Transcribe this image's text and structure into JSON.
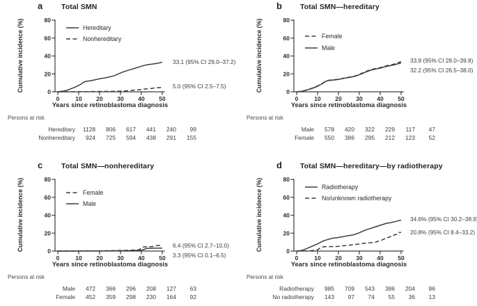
{
  "ink_color": "#3b3b3b",
  "background_color": "#ffffff",
  "chart_data": [
    {
      "type": "line",
      "panel": "a",
      "title": "Total SMN",
      "xlabel": "Years since retinoblastoma diagnosis",
      "ylabel": "Cumulative incidence (%)",
      "xlim": [
        0,
        50
      ],
      "ylim": [
        0,
        80
      ],
      "xticks": [
        0,
        10,
        20,
        30,
        40,
        50
      ],
      "yticks": [
        0,
        20,
        40,
        60,
        80
      ],
      "grid": false,
      "legend_position": "top-left-inside",
      "series": [
        {
          "name": "Hereditary",
          "style": "solid",
          "annotation": "33.1 (95% CI 29.0–37.2)",
          "x": [
            0,
            1,
            3,
            5,
            7,
            9,
            11,
            12,
            13,
            14,
            16,
            18,
            20,
            22,
            24,
            26,
            27,
            29,
            31,
            33,
            35,
            37,
            39,
            41,
            43,
            45,
            47,
            49,
            50
          ],
          "y": [
            0,
            0.3,
            1,
            2.2,
            4,
            6,
            8.5,
            10,
            11.5,
            11.8,
            12.5,
            13.5,
            14.5,
            15.3,
            16.2,
            17.3,
            18,
            20,
            22,
            23.5,
            25,
            26.3,
            27.8,
            29.3,
            30.3,
            30.8,
            31.5,
            32.5,
            33.1
          ]
        },
        {
          "name": "Nonhereditary",
          "style": "dashed",
          "annotation": "5.0 (95% CI 2.5–7.5)",
          "x": [
            0,
            15,
            25,
            30,
            32,
            34,
            36,
            38,
            40,
            41,
            43,
            45,
            46,
            48,
            50
          ],
          "y": [
            0,
            0.2,
            0.5,
            0.8,
            1,
            1.3,
            1.8,
            2.2,
            2.5,
            3,
            3.3,
            3.8,
            4.2,
            4.6,
            5.0
          ]
        }
      ],
      "persons_at_risk": {
        "label": "Persons at risk",
        "x": [
          0,
          10,
          20,
          30,
          40,
          50
        ],
        "rows": [
          {
            "name": "Hereditary",
            "values": [
              1128,
              806,
              617,
              441,
              240,
              99
            ]
          },
          {
            "name": "Nonhereditary",
            "values": [
              924,
              725,
              594,
              438,
              291,
              155
            ]
          }
        ]
      }
    },
    {
      "type": "line",
      "panel": "b",
      "title": "Total SMN—hereditary",
      "xlabel": "Years since retinoblastoma diagnosis",
      "ylabel": "Cumulative incidence (%)",
      "xlim": [
        0,
        50
      ],
      "ylim": [
        0,
        80
      ],
      "xticks": [
        0,
        10,
        20,
        30,
        40,
        50
      ],
      "yticks": [
        0,
        20,
        40,
        60,
        80
      ],
      "grid": false,
      "legend_position": "top-left-inside",
      "series": [
        {
          "name": "Female",
          "style": "dashed",
          "annotation": "33.9 (95% CI 28.0–39.8)",
          "x": [
            0,
            2,
            4,
            6,
            8,
            10,
            12,
            13,
            14,
            15,
            17,
            19,
            21,
            23,
            25,
            27,
            29,
            31,
            33,
            34,
            36,
            38,
            40,
            42,
            44,
            46,
            48,
            50
          ],
          "y": [
            0,
            0.5,
            1.5,
            3,
            4.5,
            6.5,
            9,
            10.5,
            12,
            12.8,
            13.3,
            13.8,
            14.5,
            15.5,
            16.3,
            17,
            18.5,
            20.5,
            22.5,
            23.5,
            25,
            26,
            27,
            28.5,
            29.5,
            30.5,
            32,
            33.9
          ]
        },
        {
          "name": "Male",
          "style": "solid",
          "annotation": "32.2 (95% CI 26.5–38.0)",
          "x": [
            0,
            2,
            4,
            6,
            8,
            10,
            12,
            13,
            14,
            15,
            17,
            19,
            21,
            23,
            25,
            27,
            29,
            31,
            33,
            34,
            36,
            38,
            40,
            42,
            44,
            46,
            48,
            50
          ],
          "y": [
            0,
            0.4,
            1.3,
            2.8,
            4.3,
            6.2,
            8.7,
            10.2,
            11.7,
            12.5,
            13,
            13.5,
            14.2,
            15.2,
            16,
            16.8,
            18.2,
            20,
            22,
            23,
            24.5,
            25.5,
            26.5,
            27.8,
            28.8,
            29.8,
            31,
            32.2
          ]
        }
      ],
      "persons_at_risk": {
        "label": "Persons at risk",
        "x": [
          0,
          10,
          20,
          30,
          40,
          50
        ],
        "rows": [
          {
            "name": "Male",
            "values": [
              578,
              420,
              322,
              229,
              117,
              47
            ]
          },
          {
            "name": "Female",
            "values": [
              550,
              386,
              295,
              212,
              123,
              52
            ]
          }
        ]
      }
    },
    {
      "type": "line",
      "panel": "c",
      "title": "Total SMN—nonhereditary",
      "xlabel": "Years since retinoblastoma diagnosis",
      "ylabel": "Cumulative incidence (%)",
      "xlim": [
        0,
        50
      ],
      "ylim": [
        0,
        80
      ],
      "xticks": [
        0,
        10,
        20,
        30,
        40,
        50
      ],
      "yticks": [
        0,
        20,
        40,
        60,
        80
      ],
      "grid": false,
      "legend_position": "top-left-inside",
      "series": [
        {
          "name": "Female",
          "style": "dashed",
          "annotation": "6.4 (95% CI 2.7–10.0)",
          "x": [
            0,
            20,
            27,
            33,
            37,
            39,
            40,
            41,
            44,
            46,
            47,
            48,
            50
          ],
          "y": [
            0,
            0.2,
            0.5,
            0.8,
            1.2,
            1.5,
            3.8,
            4.6,
            4.8,
            5.2,
            5.8,
            6.2,
            6.4
          ]
        },
        {
          "name": "Male",
          "style": "solid",
          "annotation": "3.3 (95% CI 0.1–6.5)",
          "x": [
            0,
            25,
            35,
            39,
            41,
            42,
            43,
            46,
            50
          ],
          "y": [
            0,
            0.2,
            0.5,
            0.8,
            1.5,
            2.6,
            3,
            3.2,
            3.3
          ]
        }
      ],
      "persons_at_risk": {
        "label": "Persons at risk",
        "x": [
          0,
          10,
          20,
          30,
          40,
          50
        ],
        "rows": [
          {
            "name": "Male",
            "values": [
              472,
              366,
              296,
              208,
              127,
              63
            ]
          },
          {
            "name": "Female",
            "values": [
              452,
              359,
              298,
              230,
              164,
              92
            ]
          }
        ]
      }
    },
    {
      "type": "line",
      "panel": "d",
      "title": "Total SMN—hereditary—by radiotherapy",
      "xlabel": "Years since retinoblastoma diagnosis",
      "ylabel": "Cumulative incidence (%)",
      "xlim": [
        0,
        50
      ],
      "ylim": [
        0,
        80
      ],
      "xticks": [
        0,
        10,
        20,
        30,
        40,
        50
      ],
      "yticks": [
        0,
        20,
        40,
        60,
        80
      ],
      "grid": false,
      "legend_position": "top-left-inside",
      "series": [
        {
          "name": "Radiotherapy",
          "style": "solid",
          "annotation": "34.6% (95% CI 30.2–38.9)",
          "x": [
            0,
            2,
            4,
            6,
            8,
            10,
            12,
            13,
            15,
            17,
            19,
            21,
            23,
            25,
            27,
            29,
            31,
            33,
            35,
            37,
            39,
            41,
            43,
            45,
            47,
            49,
            50
          ],
          "y": [
            0,
            0.5,
            2,
            4,
            6,
            8,
            10.5,
            11.5,
            13,
            14.3,
            14.8,
            15.5,
            16.5,
            17.3,
            18,
            19.5,
            21.5,
            23.5,
            25,
            26.5,
            28,
            29.5,
            31,
            31.8,
            32.8,
            34,
            34.6
          ]
        },
        {
          "name": "No/unknown radiotherapy",
          "style": "dashed",
          "annotation": "20.8% (95% CI 8.4–33.2)",
          "x": [
            0,
            6,
            8,
            10,
            11,
            12,
            13,
            15,
            18,
            20,
            22,
            24,
            26,
            28,
            30,
            32,
            34,
            36,
            38,
            39,
            40,
            41,
            42,
            43,
            44,
            45,
            46,
            47,
            48,
            49,
            50
          ],
          "y": [
            0,
            0.2,
            0.8,
            1.5,
            3,
            4,
            4.8,
            5,
            5,
            5.2,
            5.8,
            6.3,
            6.8,
            7.2,
            8,
            8.6,
            9,
            9.4,
            10,
            11,
            11.5,
            12.5,
            13.5,
            15,
            15.2,
            16.2,
            16.3,
            18.5,
            18.6,
            20.8,
            20.8
          ]
        }
      ],
      "persons_at_risk": {
        "label": "Persons at risk",
        "x": [
          0,
          10,
          20,
          30,
          40,
          50
        ],
        "rows": [
          {
            "name": "Radiotherapy",
            "values": [
              985,
              709,
              543,
              386,
              204,
              86
            ]
          },
          {
            "name": "No radiotherapy",
            "values": [
              143,
              97,
              74,
              55,
              36,
              13
            ]
          }
        ]
      }
    }
  ]
}
